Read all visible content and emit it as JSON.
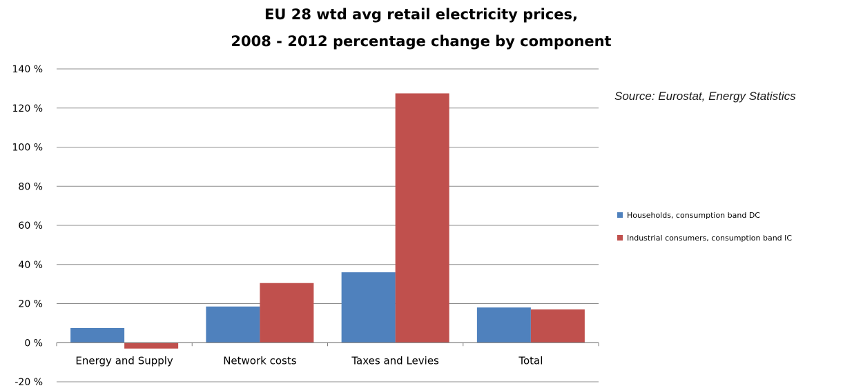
{
  "chart_data": {
    "type": "bar",
    "title": "EU 28 wtd avg retail electricity prices,",
    "subtitle": "2008 - 2012 percentage change by component",
    "categories": [
      "Energy and Supply",
      "Network costs",
      "Taxes and Levies",
      "Total"
    ],
    "series": [
      {
        "name": "Households, consumption band DC",
        "color": "#4f81bd",
        "values": [
          7.5,
          18.5,
          36.0,
          18.0
        ]
      },
      {
        "name": "Industrial consumers, consumption band IC",
        "color": "#c0504d",
        "values": [
          -3.0,
          30.5,
          127.5,
          17.0
        ]
      }
    ],
    "ylim": [
      -20,
      140
    ],
    "yticks": [
      140,
      120,
      100,
      80,
      60,
      40,
      20,
      0,
      -20
    ],
    "ytick_labels": [
      "140 %",
      "120 %",
      "100 %",
      "80 %",
      "60 %",
      "40 %",
      "20 %",
      "0 %",
      "-20 %"
    ],
    "grid": true,
    "legend_position": "right",
    "annotation": "Source: Eurostat, Energy Statistics"
  }
}
